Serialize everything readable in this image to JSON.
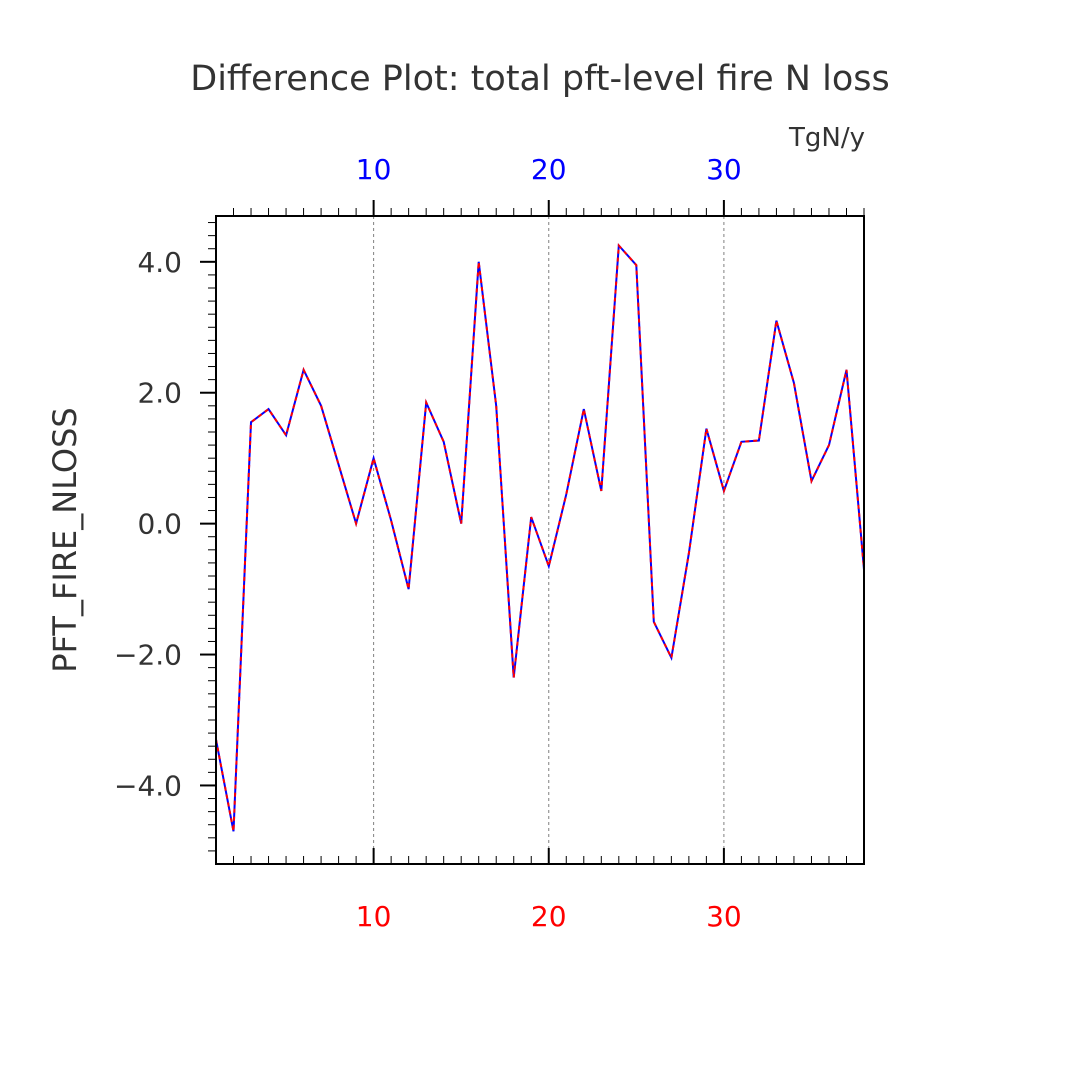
{
  "chart_data": {
    "type": "line",
    "title": "Difference Plot: total pft-level fire N loss",
    "units": "TgN/y",
    "ylabel": "PFT_FIRE_NLOSS",
    "xlim": [
      1,
      38
    ],
    "ylim": [
      -5.2,
      4.7
    ],
    "bottom_ticks": [
      "10",
      "20",
      "30"
    ],
    "top_ticks": [
      "10",
      "20",
      "30"
    ],
    "y_ticks": [
      "4.0",
      "2.0",
      "0.0",
      "−2.0",
      "−4.0"
    ],
    "grid": "dashed vertical at major x ticks",
    "x": [
      1,
      2,
      3,
      4,
      5,
      6,
      7,
      8,
      9,
      10,
      11,
      12,
      13,
      14,
      15,
      16,
      17,
      18,
      19,
      20,
      21,
      22,
      23,
      24,
      25,
      26,
      27,
      28,
      29,
      30,
      31,
      32,
      33,
      34,
      35,
      36,
      37,
      38
    ],
    "series": [
      {
        "color": "#0000ff",
        "values": [
          -3.3,
          -4.7,
          1.55,
          1.75,
          1.35,
          2.35,
          1.8,
          0.9,
          0.0,
          1.0,
          0.05,
          -1.0,
          1.85,
          1.25,
          0.0,
          4.0,
          1.8,
          -2.35,
          0.1,
          -0.65,
          0.45,
          1.75,
          0.5,
          4.25,
          3.95,
          -1.5,
          -2.05,
          -0.45,
          1.45,
          0.5,
          1.25,
          1.27,
          3.1,
          2.15,
          0.65,
          1.2,
          2.35,
          -0.7
        ]
      },
      {
        "color": "#ff0000",
        "dashed": true,
        "values": [
          -3.3,
          -4.7,
          1.55,
          1.75,
          1.35,
          2.35,
          1.8,
          0.9,
          0.0,
          1.0,
          0.05,
          -1.0,
          1.85,
          1.25,
          0.0,
          4.0,
          1.8,
          -2.35,
          0.1,
          -0.65,
          0.45,
          1.75,
          0.5,
          4.25,
          3.95,
          -1.5,
          -2.05,
          -0.45,
          1.45,
          0.5,
          1.25,
          1.27,
          3.1,
          2.15,
          0.65,
          1.2,
          2.35,
          -0.7
        ]
      }
    ],
    "colors": {
      "axis": "#000000",
      "bottom_tick_labels": "#ff0000",
      "top_tick_labels": "#0000ff",
      "grid": "#808080",
      "text": "#333333"
    }
  }
}
